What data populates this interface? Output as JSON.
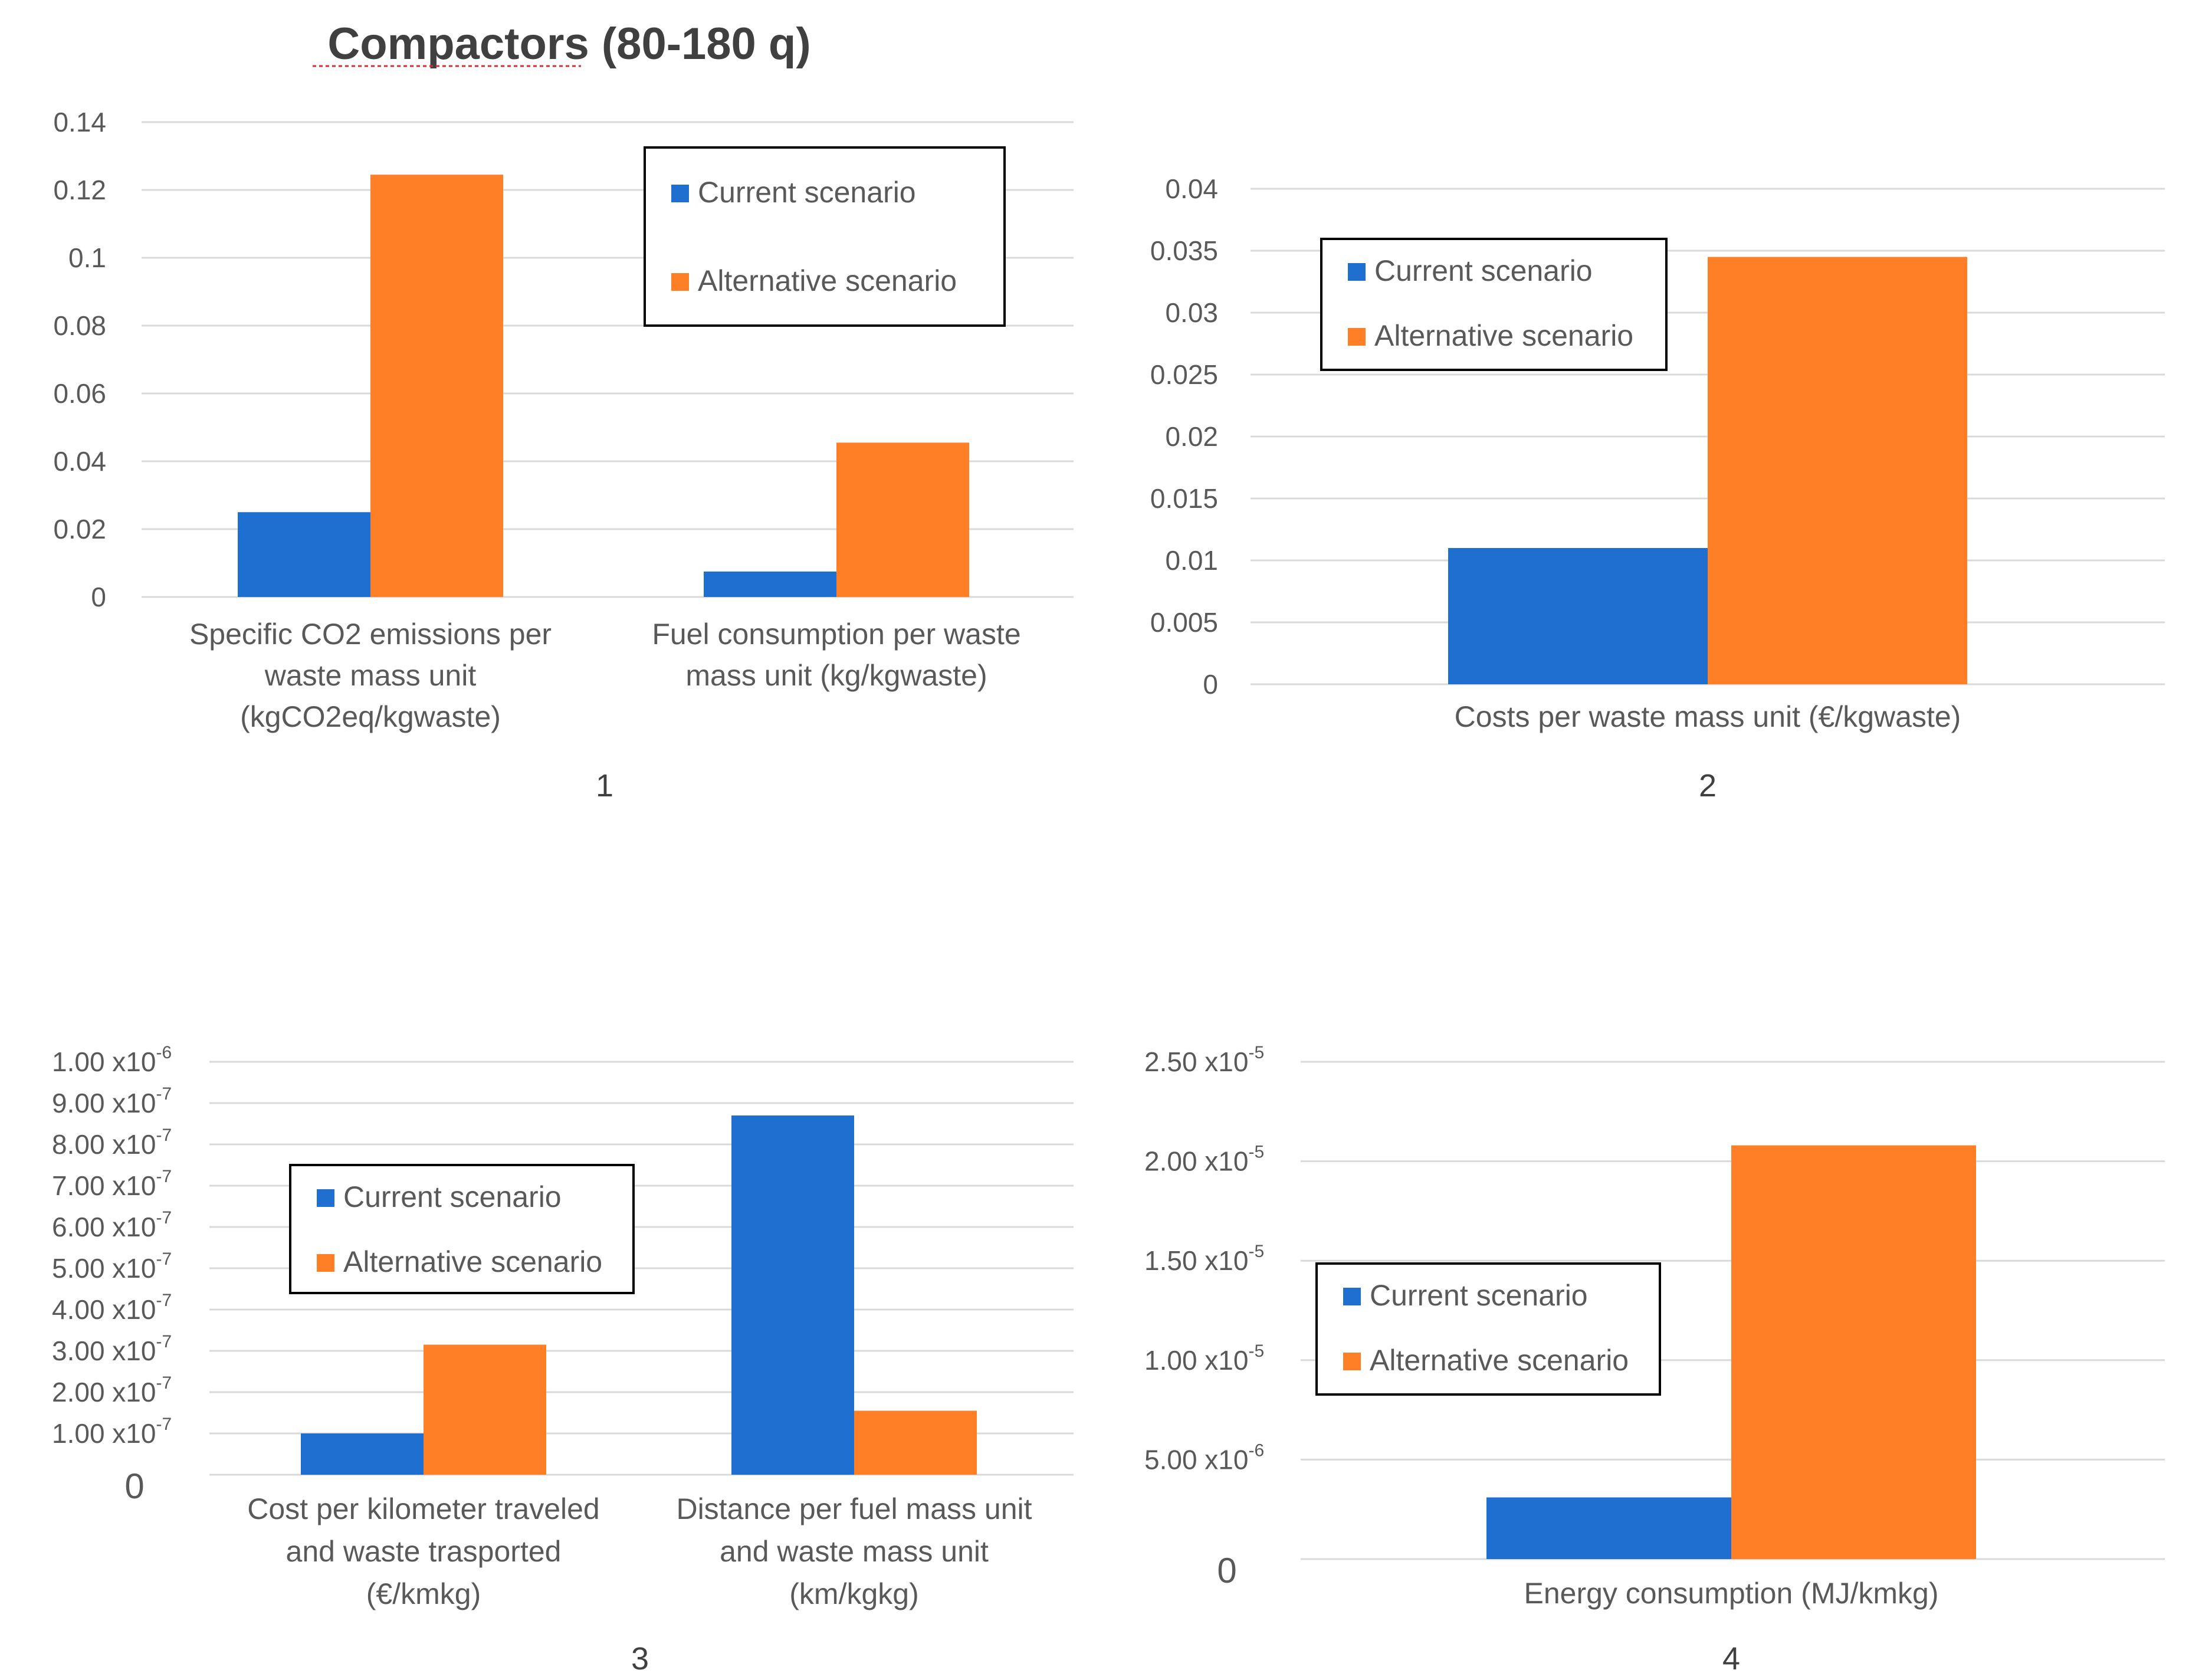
{
  "figure_title": "Compactors (80-180 q)",
  "colors": {
    "current": "#1f6fd1",
    "alternative": "#ff7f27"
  },
  "chart_data": [
    {
      "type": "bar",
      "panel_number": "1",
      "categories": [
        [
          "Specific CO2 emissions per",
          "waste mass unit",
          "(kgCO2eq/kgwaste)"
        ],
        [
          "Fuel consumption per waste",
          "mass unit (kg/kgwaste)"
        ]
      ],
      "series": [
        {
          "name": "Current scenario",
          "values": [
            0.025,
            0.0075
          ]
        },
        {
          "name": "Alternative scenario",
          "values": [
            0.1245,
            0.0455
          ]
        }
      ],
      "ylim": [
        0,
        0.14
      ],
      "ticks": [
        [
          "0",
          ""
        ],
        [
          "0.02",
          ""
        ],
        [
          "0.04",
          ""
        ],
        [
          "0.06",
          ""
        ],
        [
          "0.08",
          ""
        ],
        [
          "0.1",
          ""
        ],
        [
          "0.12",
          ""
        ],
        [
          "0.14",
          ""
        ]
      ],
      "grid": true,
      "legend": "top-right"
    },
    {
      "type": "bar",
      "panel_number": "2",
      "categories": [
        [
          "Costs per waste mass unit (€/kgwaste)"
        ]
      ],
      "series": [
        {
          "name": "Current scenario",
          "values": [
            0.011
          ]
        },
        {
          "name": "Alternative scenario",
          "values": [
            0.0345
          ]
        }
      ],
      "ylim": [
        0,
        0.04
      ],
      "ticks": [
        [
          "0",
          ""
        ],
        [
          "0.005",
          ""
        ],
        [
          "0.01",
          ""
        ],
        [
          "0.015",
          ""
        ],
        [
          "0.02",
          ""
        ],
        [
          "0.025",
          ""
        ],
        [
          "0.03",
          ""
        ],
        [
          "0.035",
          ""
        ],
        [
          "0.04",
          ""
        ]
      ],
      "grid": true,
      "legend": "top-left"
    },
    {
      "type": "bar",
      "panel_number": "3",
      "categories": [
        [
          "Cost per kilometer traveled",
          "and waste trasported",
          "(€/kmkg)"
        ],
        [
          "Distance per fuel mass unit",
          "and waste mass unit",
          "(km/kgkg)"
        ]
      ],
      "series": [
        {
          "name": "Current scenario",
          "values": [
            1e-07,
            8.7e-07
          ]
        },
        {
          "name": "Alternative scenario",
          "values": [
            3.15e-07,
            1.55e-07
          ]
        }
      ],
      "ylim": [
        0,
        1e-06
      ],
      "ticks": [
        [
          "0",
          ""
        ],
        [
          "1.00 x10",
          "-7"
        ],
        [
          "2.00 x10",
          "-7"
        ],
        [
          "3.00 x10",
          "-7"
        ],
        [
          "4.00 x10",
          "-7"
        ],
        [
          "5.00 x10",
          "-7"
        ],
        [
          "6.00 x10",
          "-7"
        ],
        [
          "7.00 x10",
          "-7"
        ],
        [
          "8.00 x10",
          "-7"
        ],
        [
          "9.00 x10",
          "-7"
        ],
        [
          "1.00 x10",
          "-6"
        ]
      ],
      "grid": true,
      "legend": "center-left"
    },
    {
      "type": "bar",
      "panel_number": "4",
      "categories": [
        [
          "Energy consumption (MJ/kmkg)"
        ]
      ],
      "series": [
        {
          "name": "Current scenario",
          "values": [
            3.1e-06
          ]
        },
        {
          "name": "Alternative scenario",
          "values": [
            2.08e-05
          ]
        }
      ],
      "ylim": [
        0,
        2.5e-05
      ],
      "ticks": [
        [
          "0",
          ""
        ],
        [
          "5.00 x10",
          "-6"
        ],
        [
          "1.00 x10",
          "-5"
        ],
        [
          "1.50 x10",
          "-5"
        ],
        [
          "2.00 x10",
          "-5"
        ],
        [
          "2.50 x10",
          "-5"
        ]
      ],
      "grid": true,
      "legend": "center-left"
    }
  ]
}
